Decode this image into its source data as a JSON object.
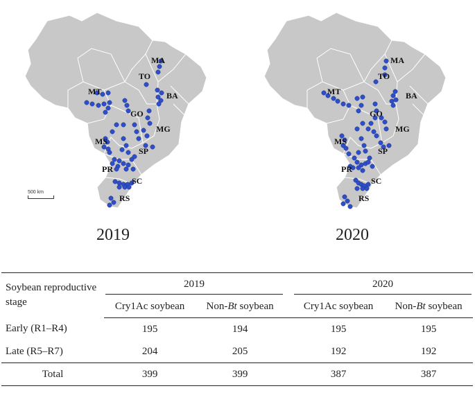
{
  "maps": [
    {
      "year": "2019",
      "scale_label": "500 km"
    },
    {
      "year": "2020",
      "scale_label": ""
    }
  ],
  "states": [
    "MA",
    "TO",
    "BA",
    "MT",
    "GO",
    "MG",
    "MS",
    "SP",
    "PR",
    "SC",
    "RS"
  ],
  "point_color": "#2f4fc8",
  "table": {
    "header_stage": "Soybean reproductive stage",
    "years": [
      "2019",
      "2020"
    ],
    "subheaders": [
      "Cry1Ac soybean",
      "Non-Bt soybean",
      "Cry1Ac soybean",
      "Non-Bt soybean"
    ],
    "rows": [
      {
        "label": "Early (R1–R4)",
        "values": [
          "195",
          "194",
          "195",
          "195"
        ]
      },
      {
        "label": "Late (R5–R7)",
        "values": [
          "204",
          "205",
          "192",
          "192"
        ]
      },
      {
        "label": "Total",
        "values": [
          "399",
          "399",
          "387",
          "387"
        ]
      }
    ]
  }
}
